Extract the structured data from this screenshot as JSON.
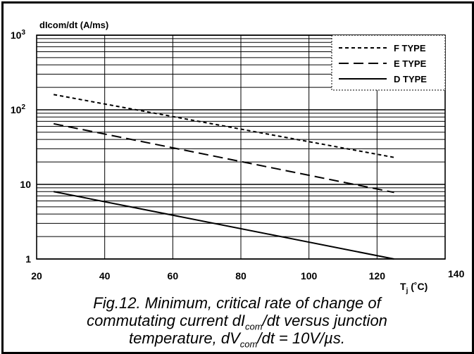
{
  "chart_data": {
    "type": "line",
    "title": "",
    "ylabel": "dIcom/dt (A/ms)",
    "xlabel": {
      "main": "T",
      "sub": "j",
      "unit": " (˚C)"
    },
    "x_scale": "linear",
    "y_scale": "log",
    "xlim": [
      20,
      140
    ],
    "ylim": [
      1,
      1000
    ],
    "x_ticks": [
      "20",
      "40",
      "60",
      "80",
      "100",
      "120",
      "140"
    ],
    "y_ticks": [
      {
        "base": "1",
        "exp": ""
      },
      {
        "base": "10",
        "exp": ""
      },
      {
        "base": "10",
        "exp": "2"
      },
      {
        "base": "10",
        "exp": "3"
      }
    ],
    "grid": true,
    "legend_position": "top-right",
    "series": [
      {
        "name": "F TYPE",
        "style": "dotted",
        "x": [
          25,
          125
        ],
        "y": [
          160,
          23
        ]
      },
      {
        "name": "E TYPE",
        "style": "dashed",
        "x": [
          25,
          125
        ],
        "y": [
          65,
          7.8
        ]
      },
      {
        "name": "D TYPE",
        "style": "solid",
        "x": [
          25,
          125
        ],
        "y": [
          8,
          1
        ]
      }
    ]
  },
  "caption": {
    "line1": "Fig.12.  Minimum, critical rate of change of",
    "line2_a": "commutating current dI",
    "line2_sub": "com",
    "line2_b": "/dt versus junction",
    "line3_a": "temperature, dV",
    "line3_sub": "com",
    "line3_b": "/dt = 10V/µs."
  }
}
